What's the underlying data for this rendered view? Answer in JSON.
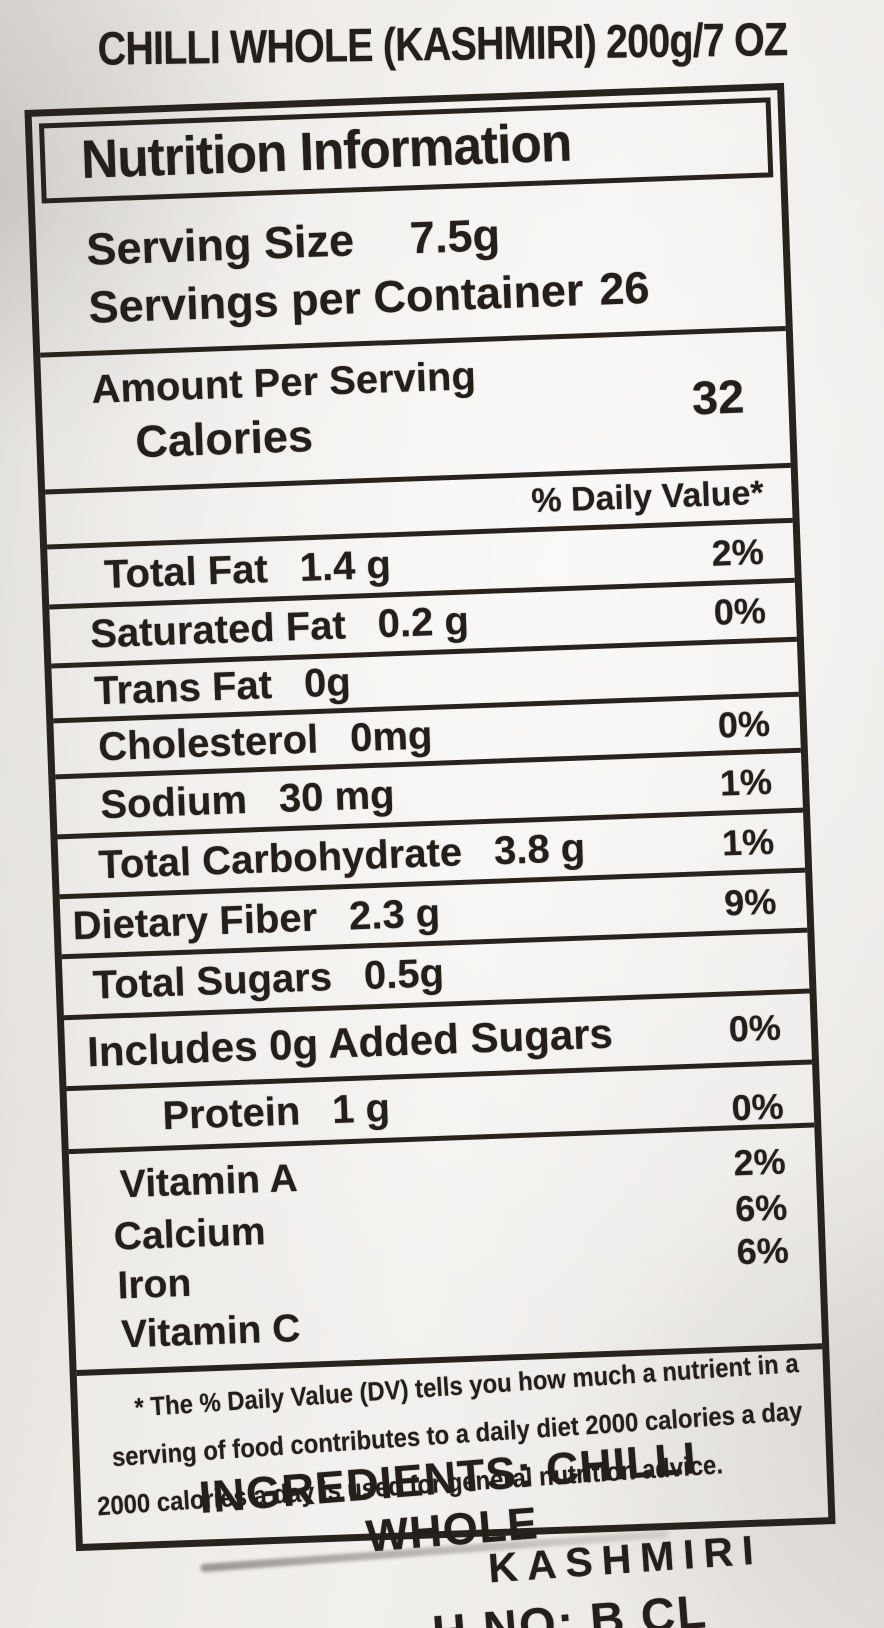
{
  "colors": {
    "ink": "#241f1a",
    "paper": "#ece9e5",
    "paper_highlight": "#f2f0ed",
    "paper_shadow": "#dbd8d4"
  },
  "product_title": "CHILLI WHOLE (KASHMIRI) 200g/7 OZ",
  "label": {
    "title": "Nutrition Information",
    "serving": {
      "serving_size_label": "Serving Size",
      "serving_size_value": "7.5g",
      "servings_label": "Servings per Container",
      "servings_value": "26"
    },
    "amount_per_serving": "Amount Per Serving",
    "calories_label": "Calories",
    "calories_value": "32",
    "daily_value_header": "% Daily Value*",
    "rows": [
      {
        "name": "Total Fat",
        "amount": "1.4 g",
        "dv": "2%"
      },
      {
        "name": "Saturated Fat",
        "amount": "0.2 g",
        "dv": "0%"
      },
      {
        "name": "Trans Fat",
        "amount": "0g",
        "dv": ""
      },
      {
        "name": "Cholesterol",
        "amount": "0mg",
        "dv": "0%"
      },
      {
        "name": "Sodium",
        "amount": "30 mg",
        "dv": "1%"
      },
      {
        "name": "Total Carbohydrate",
        "amount": "3.8 g",
        "dv": "1%"
      },
      {
        "name": "Dietary Fiber",
        "amount": "2.3 g",
        "dv": "9%"
      },
      {
        "name": "Total Sugars",
        "amount": "0.5g",
        "dv": ""
      },
      {
        "name": "Includes 0g Added Sugars",
        "amount": "",
        "dv": "0%"
      },
      {
        "name": "Protein",
        "amount": "1 g",
        "dv": "0%"
      }
    ],
    "vitamins": [
      {
        "name": "Vitamin A",
        "dv": "2%"
      },
      {
        "name": "Calcium",
        "dv": "6%"
      },
      {
        "name": "Iron",
        "dv": "6%"
      },
      {
        "name": "Vitamin C",
        "dv": ""
      }
    ],
    "footnote_lines": [
      "* The % Daily Value (DV) tells you how much a nutrient in a",
      "serving of food contributes to a daily diet 2000 calories a day",
      "2000 calories a day is used for general nutrition advice."
    ]
  },
  "ingredients": {
    "line1": "INGREDIENTS: CHILLI WHOLE",
    "line2": "KASHMIRI",
    "line3": "H NO: B CL"
  }
}
